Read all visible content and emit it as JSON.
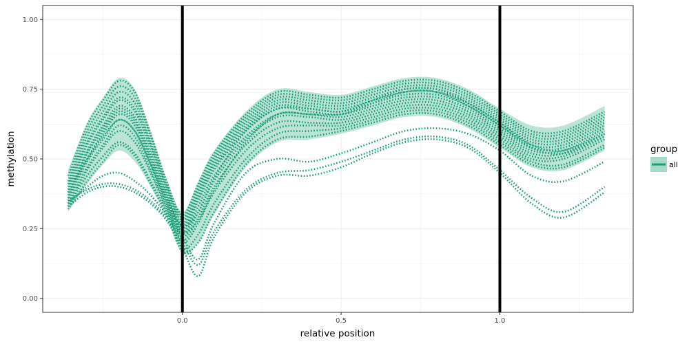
{
  "chart_data": {
    "type": "line",
    "xlabel": "relative position",
    "ylabel": "methylation",
    "xlim": [
      -0.44,
      1.42
    ],
    "ylim": [
      -0.05,
      1.05
    ],
    "x_ticks": [
      0.0,
      0.5,
      1.0
    ],
    "x_tick_labels": [
      "0.0",
      "0.5",
      "1.0"
    ],
    "y_ticks": [
      0.0,
      0.25,
      0.5,
      0.75,
      1.0
    ],
    "y_tick_labels": [
      "0.00",
      "0.25",
      "0.50",
      "0.75",
      "1.00"
    ],
    "vlines": [
      0.0,
      1.0
    ],
    "grid": true,
    "legend": {
      "title": "group",
      "position": "right",
      "entries": [
        {
          "label": "all",
          "color": "#1b9e77"
        }
      ]
    },
    "line_style": "dotted",
    "series_color": "#1b9e77",
    "ribbon_color": "#a6dbc8",
    "x": [
      -0.36,
      -0.3,
      -0.25,
      -0.2,
      -0.15,
      -0.1,
      -0.05,
      0.0,
      0.05,
      0.1,
      0.2,
      0.3,
      0.4,
      0.5,
      0.6,
      0.7,
      0.8,
      0.9,
      1.0,
      1.1,
      1.2,
      1.33
    ],
    "series": [
      {
        "values": [
          0.44,
          0.62,
          0.71,
          0.78,
          0.74,
          0.59,
          0.42,
          0.3,
          0.41,
          0.52,
          0.66,
          0.74,
          0.73,
          0.72,
          0.75,
          0.78,
          0.78,
          0.74,
          0.67,
          0.6,
          0.6,
          0.67
        ]
      },
      {
        "values": [
          0.42,
          0.6,
          0.69,
          0.76,
          0.72,
          0.58,
          0.41,
          0.29,
          0.4,
          0.51,
          0.65,
          0.73,
          0.72,
          0.71,
          0.74,
          0.77,
          0.77,
          0.73,
          0.66,
          0.59,
          0.59,
          0.66
        ]
      },
      {
        "values": [
          0.41,
          0.58,
          0.67,
          0.74,
          0.7,
          0.56,
          0.4,
          0.28,
          0.39,
          0.5,
          0.64,
          0.72,
          0.71,
          0.7,
          0.73,
          0.76,
          0.76,
          0.72,
          0.65,
          0.58,
          0.58,
          0.65
        ]
      },
      {
        "values": [
          0.4,
          0.56,
          0.65,
          0.72,
          0.68,
          0.55,
          0.39,
          0.27,
          0.38,
          0.49,
          0.63,
          0.71,
          0.7,
          0.69,
          0.72,
          0.75,
          0.75,
          0.71,
          0.64,
          0.57,
          0.57,
          0.64
        ]
      },
      {
        "values": [
          0.39,
          0.55,
          0.64,
          0.71,
          0.67,
          0.54,
          0.38,
          0.26,
          0.37,
          0.48,
          0.62,
          0.7,
          0.69,
          0.68,
          0.71,
          0.74,
          0.74,
          0.7,
          0.63,
          0.56,
          0.56,
          0.63
        ]
      },
      {
        "values": [
          0.38,
          0.53,
          0.62,
          0.69,
          0.65,
          0.52,
          0.37,
          0.25,
          0.36,
          0.47,
          0.61,
          0.69,
          0.68,
          0.67,
          0.7,
          0.73,
          0.73,
          0.69,
          0.62,
          0.55,
          0.55,
          0.62
        ]
      },
      {
        "values": [
          0.37,
          0.52,
          0.61,
          0.68,
          0.64,
          0.51,
          0.36,
          0.24,
          0.35,
          0.46,
          0.6,
          0.68,
          0.67,
          0.66,
          0.69,
          0.72,
          0.72,
          0.68,
          0.61,
          0.54,
          0.54,
          0.61
        ]
      },
      {
        "values": [
          0.36,
          0.5,
          0.59,
          0.66,
          0.62,
          0.49,
          0.35,
          0.23,
          0.33,
          0.44,
          0.58,
          0.66,
          0.66,
          0.65,
          0.68,
          0.71,
          0.71,
          0.67,
          0.6,
          0.53,
          0.53,
          0.6
        ]
      },
      {
        "values": [
          0.35,
          0.49,
          0.57,
          0.64,
          0.6,
          0.48,
          0.34,
          0.22,
          0.31,
          0.42,
          0.57,
          0.65,
          0.65,
          0.64,
          0.67,
          0.7,
          0.7,
          0.66,
          0.59,
          0.52,
          0.52,
          0.59
        ]
      },
      {
        "values": [
          0.34,
          0.47,
          0.55,
          0.62,
          0.58,
          0.46,
          0.33,
          0.21,
          0.29,
          0.4,
          0.55,
          0.63,
          0.63,
          0.63,
          0.66,
          0.69,
          0.69,
          0.65,
          0.58,
          0.51,
          0.51,
          0.58
        ]
      },
      {
        "values": [
          0.33,
          0.46,
          0.54,
          0.6,
          0.56,
          0.45,
          0.32,
          0.2,
          0.27,
          0.38,
          0.53,
          0.61,
          0.62,
          0.62,
          0.65,
          0.68,
          0.68,
          0.64,
          0.57,
          0.5,
          0.5,
          0.57
        ]
      },
      {
        "values": [
          0.33,
          0.44,
          0.51,
          0.56,
          0.52,
          0.42,
          0.31,
          0.18,
          0.23,
          0.34,
          0.5,
          0.59,
          0.6,
          0.61,
          0.64,
          0.67,
          0.67,
          0.63,
          0.56,
          0.49,
          0.48,
          0.55
        ]
      },
      {
        "values": [
          0.32,
          0.42,
          0.49,
          0.55,
          0.51,
          0.41,
          0.3,
          0.17,
          0.2,
          0.31,
          0.48,
          0.57,
          0.58,
          0.6,
          0.63,
          0.66,
          0.66,
          0.62,
          0.55,
          0.48,
          0.47,
          0.54
        ]
      },
      {
        "values": [
          0.34,
          0.4,
          0.44,
          0.45,
          0.42,
          0.37,
          0.3,
          0.22,
          0.14,
          0.27,
          0.45,
          0.5,
          0.49,
          0.52,
          0.56,
          0.6,
          0.61,
          0.59,
          0.53,
          0.44,
          0.42,
          0.49
        ]
      },
      {
        "values": [
          0.33,
          0.38,
          0.4,
          0.4,
          0.38,
          0.34,
          0.28,
          0.18,
          0.08,
          0.22,
          0.38,
          0.44,
          0.44,
          0.47,
          0.52,
          0.56,
          0.57,
          0.54,
          0.45,
          0.34,
          0.29,
          0.38
        ]
      },
      {
        "values": [
          0.35,
          0.39,
          0.41,
          0.41,
          0.39,
          0.35,
          0.29,
          0.2,
          0.12,
          0.24,
          0.39,
          0.45,
          0.46,
          0.49,
          0.53,
          0.57,
          0.58,
          0.55,
          0.46,
          0.36,
          0.31,
          0.4
        ]
      },
      {
        "values": [
          0.38,
          0.5,
          0.58,
          0.64,
          0.6,
          0.48,
          0.35,
          0.24,
          0.28,
          0.39,
          0.56,
          0.66,
          0.66,
          0.66,
          0.7,
          0.74,
          0.74,
          0.69,
          0.62,
          0.54,
          0.52,
          0.58
        ]
      },
      {
        "values": [
          0.36,
          0.52,
          0.6,
          0.67,
          0.63,
          0.5,
          0.36,
          0.26,
          0.31,
          0.43,
          0.6,
          0.68,
          0.68,
          0.67,
          0.71,
          0.75,
          0.75,
          0.7,
          0.63,
          0.55,
          0.53,
          0.59
        ]
      }
    ],
    "ribbon_upper": [
      0.46,
      0.63,
      0.72,
      0.79,
      0.75,
      0.6,
      0.43,
      0.31,
      0.42,
      0.53,
      0.67,
      0.75,
      0.74,
      0.73,
      0.76,
      0.79,
      0.79,
      0.75,
      0.68,
      0.62,
      0.62,
      0.69
    ],
    "ribbon_lower": [
      0.31,
      0.41,
      0.48,
      0.53,
      0.49,
      0.4,
      0.29,
      0.16,
      0.2,
      0.3,
      0.47,
      0.56,
      0.57,
      0.59,
      0.62,
      0.65,
      0.65,
      0.61,
      0.54,
      0.47,
      0.46,
      0.53
    ]
  }
}
